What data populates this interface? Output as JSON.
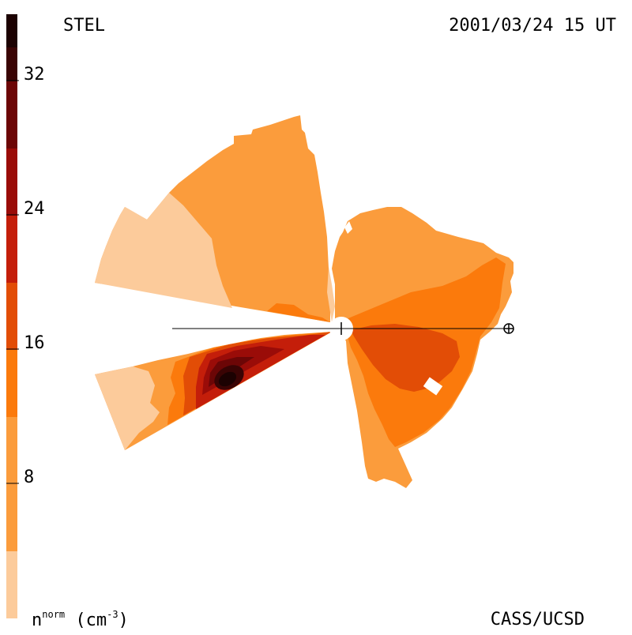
{
  "header": {
    "station": "STEL",
    "datetime": "2001/03/24 15 UT"
  },
  "footer": {
    "unit_base": "n",
    "unit_sup": "norm",
    "unit_rest": " (cm",
    "unit_exp": "-3",
    "unit_close": ")",
    "credit": "CASS/UCSD"
  },
  "colorbar": {
    "ticks": [
      "32",
      "24",
      "16",
      "8"
    ],
    "range": [
      0,
      36
    ],
    "colors": [
      "#fccb9b",
      "#fb9c3c",
      "#fb7a0c",
      "#e24d06",
      "#c41e0a",
      "#9a0c08",
      "#6c0606",
      "#3a0404",
      "#1c0202"
    ]
  },
  "map": {
    "earth_symbol": "earth-icon",
    "sun_symbol": "sun-icon"
  }
}
